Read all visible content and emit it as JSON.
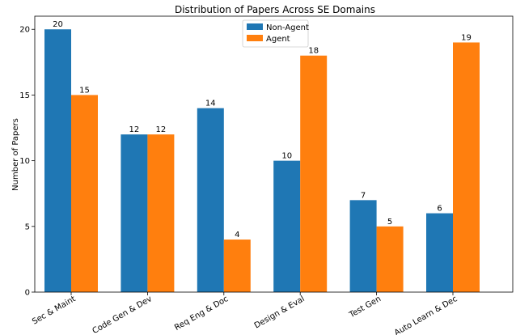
{
  "chart_data": {
    "type": "bar",
    "title": "Distribution of Papers Across SE Domains",
    "xlabel": "",
    "ylabel": "Number of Papers",
    "categories": [
      "Sec & Maint",
      "Code Gen & Dev",
      "Req Eng & Doc",
      "Design & Eval",
      "Test Gen",
      "Auto Learn & Dec"
    ],
    "series": [
      {
        "name": "Non-Agent",
        "values": [
          20,
          12,
          14,
          10,
          7,
          6
        ],
        "color": "#1f77b4"
      },
      {
        "name": "Agent",
        "values": [
          15,
          12,
          4,
          18,
          5,
          19
        ],
        "color": "#ff7f0e"
      }
    ],
    "ylim": [
      0,
      21
    ],
    "yticks": [
      0,
      5,
      10,
      15,
      20
    ],
    "grid": false,
    "legend_position": "top-center",
    "data_labels": true
  }
}
